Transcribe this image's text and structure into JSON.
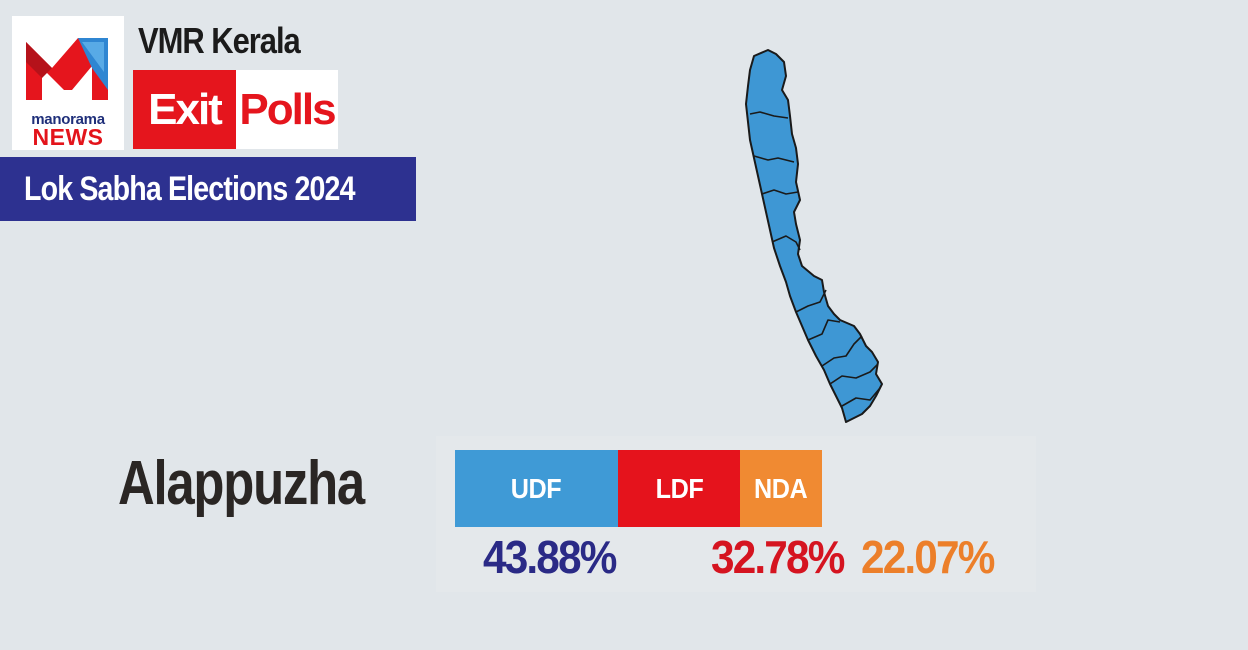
{
  "brand": {
    "logo_line1": "manorama",
    "logo_line2": "NEWS",
    "icon": "manorama-m-logo-icon"
  },
  "header": {
    "title": "VMR Kerala",
    "badge_exit": "Exit",
    "badge_polls": "Polls",
    "banner": "Lok Sabha Elections 2024"
  },
  "map": {
    "icon": "kerala-map-icon",
    "fill_color": "#3e97d4"
  },
  "constituency": "Alappuzha",
  "results": [
    {
      "party": "UDF",
      "share": 43.88,
      "label": "43.88%",
      "bar_color": "#3f9ad6",
      "text_color": "#2a2a86"
    },
    {
      "party": "LDF",
      "share": 32.78,
      "label": "32.78%",
      "bar_color": "#e5131c",
      "text_color": "#d51420"
    },
    {
      "party": "NDA",
      "share": 22.07,
      "label": "22.07%",
      "bar_color": "#f08a32",
      "text_color": "#ec7f2a"
    }
  ]
}
